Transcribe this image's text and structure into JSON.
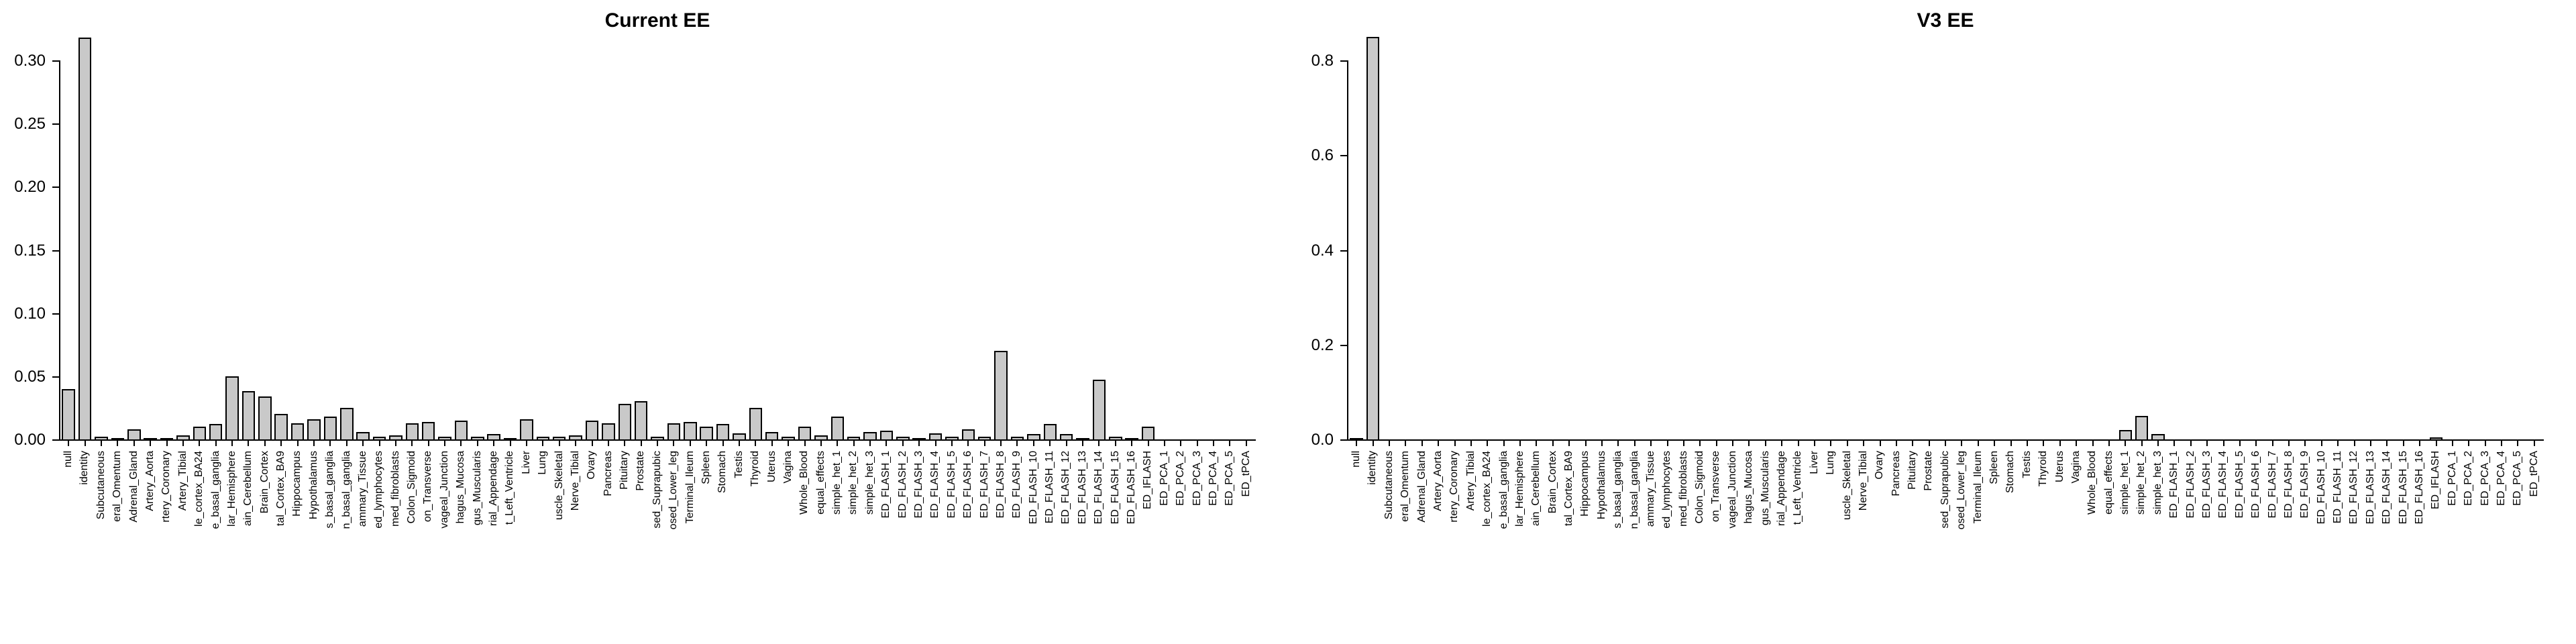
{
  "page": {
    "background": "#ffffff",
    "text_color": "#000000"
  },
  "chart_data": [
    {
      "type": "bar",
      "title": "Current EE",
      "bar_color": "#c9c9c9",
      "bar_border": "#000000",
      "grid": false,
      "legend": "none",
      "xlabel": "",
      "ylabel": "",
      "ylim": [
        0,
        0.32
      ],
      "y_ticks": [
        {
          "v": 0.0,
          "label": "0.00"
        },
        {
          "v": 0.05,
          "label": "0.05"
        },
        {
          "v": 0.1,
          "label": "0.10"
        },
        {
          "v": 0.15,
          "label": "0.15"
        },
        {
          "v": 0.2,
          "label": "0.20"
        },
        {
          "v": 0.25,
          "label": "0.25"
        },
        {
          "v": 0.3,
          "label": "0.30"
        }
      ],
      "categories": [
        "null",
        "identity",
        "Subcutaneous",
        "eral_Omentum",
        "Adrenal_Gland",
        "Artery_Aorta",
        "rtery_Coronary",
        "Artery_Tibial",
        "le_cortex_BA24",
        "e_basal_ganglia",
        "lar_Hemisphere",
        "ain_Cerebellum",
        "Brain_Cortex",
        "tal_Cortex_BA9",
        "Hippocampus",
        "Hypothalamus",
        "s_basal_ganglia",
        "n_basal_ganglia",
        "ammary_Tissue",
        "ed_lymphocytes",
        "med_fibroblasts",
        "Colon_Sigmoid",
        "on_Transverse",
        "vageal_Junction",
        "hagus_Mucosa",
        "gus_Muscularis",
        "rial_Appendage",
        "t_Left_Ventricle",
        "Liver",
        "Lung",
        "uscle_Skeletal",
        "Nerve_Tibial",
        "Ovary",
        "Pancreas",
        "Pituitary",
        "Prostate",
        "sed_Suprapubic",
        "osed_Lower_leg",
        "Terminal_Ileum",
        "Spleen",
        "Stomach",
        "Testis",
        "Thyroid",
        "Uterus",
        "Vagina",
        "Whole_Blood",
        "equal_effects",
        "simple_het_1",
        "simple_het_2",
        "simple_het_3",
        "ED_FLASH_1",
        "ED_FLASH_2",
        "ED_FLASH_3",
        "ED_FLASH_4",
        "ED_FLASH_5",
        "ED_FLASH_6",
        "ED_FLASH_7",
        "ED_FLASH_8",
        "ED_FLASH_9",
        "ED_FLASH_10",
        "ED_FLASH_11",
        "ED_FLASH_12",
        "ED_FLASH_13",
        "ED_FLASH_14",
        "ED_FLASH_15",
        "ED_FLASH_16",
        "ED_IFLASH",
        "ED_PCA_1",
        "ED_PCA_2",
        "ED_PCA_3",
        "ED_PCA_4",
        "ED_PCA_5",
        "ED_tPCA"
      ],
      "values": [
        0.04,
        0.318,
        0.002,
        0.001,
        0.008,
        0.001,
        0.001,
        0.003,
        0.01,
        0.012,
        0.05,
        0.038,
        0.034,
        0.02,
        0.013,
        0.016,
        0.018,
        0.025,
        0.006,
        0.002,
        0.003,
        0.013,
        0.014,
        0.002,
        0.015,
        0.002,
        0.004,
        0.001,
        0.016,
        0.002,
        0.002,
        0.003,
        0.015,
        0.013,
        0.028,
        0.03,
        0.002,
        0.013,
        0.014,
        0.01,
        0.012,
        0.005,
        0.025,
        0.006,
        0.002,
        0.01,
        0.003,
        0.018,
        0.002,
        0.006,
        0.007,
        0.002,
        0.001,
        0.005,
        0.002,
        0.008,
        0.002,
        0.07,
        0.002,
        0.004,
        0.012,
        0.004,
        0.001,
        0.047,
        0.002,
        0.001,
        0.01,
        0,
        0,
        0,
        0,
        0,
        0
      ]
    },
    {
      "type": "bar",
      "title": "V3 EE",
      "bar_color": "#c9c9c9",
      "bar_border": "#000000",
      "grid": false,
      "legend": "none",
      "xlabel": "",
      "ylabel": "",
      "ylim": [
        0,
        0.86
      ],
      "y_ticks": [
        {
          "v": 0.0,
          "label": "0.0"
        },
        {
          "v": 0.2,
          "label": "0.2"
        },
        {
          "v": 0.4,
          "label": "0.4"
        },
        {
          "v": 0.6,
          "label": "0.6"
        },
        {
          "v": 0.8,
          "label": "0.8"
        }
      ],
      "categories": [
        "null",
        "identity",
        "Subcutaneous",
        "eral_Omentum",
        "Adrenal_Gland",
        "Artery_Aorta",
        "rtery_Coronary",
        "Artery_Tibial",
        "le_cortex_BA24",
        "e_basal_ganglia",
        "lar_Hemisphere",
        "ain_Cerebellum",
        "Brain_Cortex",
        "tal_Cortex_BA9",
        "Hippocampus",
        "Hypothalamus",
        "s_basal_ganglia",
        "n_basal_ganglia",
        "ammary_Tissue",
        "ed_lymphocytes",
        "med_fibroblasts",
        "Colon_Sigmoid",
        "on_Transverse",
        "vageal_Junction",
        "hagus_Mucosa",
        "gus_Muscularis",
        "rial_Appendage",
        "t_Left_Ventricle",
        "Liver",
        "Lung",
        "uscle_Skeletal",
        "Nerve_Tibial",
        "Ovary",
        "Pancreas",
        "Pituitary",
        "Prostate",
        "sed_Suprapubic",
        "osed_Lower_leg",
        "Terminal_Ileum",
        "Spleen",
        "Stomach",
        "Testis",
        "Thyroid",
        "Uterus",
        "Vagina",
        "Whole_Blood",
        "equal_effects",
        "simple_het_1",
        "simple_het_2",
        "simple_het_3",
        "ED_FLASH_1",
        "ED_FLASH_2",
        "ED_FLASH_3",
        "ED_FLASH_4",
        "ED_FLASH_5",
        "ED_FLASH_6",
        "ED_FLASH_7",
        "ED_FLASH_8",
        "ED_FLASH_9",
        "ED_FLASH_10",
        "ED_FLASH_11",
        "ED_FLASH_12",
        "ED_FLASH_13",
        "ED_FLASH_14",
        "ED_FLASH_15",
        "ED_FLASH_16",
        "ED_IFLASH",
        "ED_PCA_1",
        "ED_PCA_2",
        "ED_PCA_3",
        "ED_PCA_4",
        "ED_PCA_5",
        "ED_tPCA"
      ],
      "values": [
        0.002,
        0.85,
        0,
        0,
        0,
        0,
        0,
        0,
        0,
        0,
        0,
        0,
        0,
        0,
        0,
        0,
        0,
        0,
        0,
        0,
        0,
        0,
        0,
        0,
        0,
        0,
        0,
        0,
        0,
        0,
        0,
        0,
        0,
        0,
        0,
        0,
        0,
        0,
        0,
        0,
        0,
        0,
        0,
        0,
        0,
        0,
        0,
        0.02,
        0.05,
        0.012,
        0,
        0,
        0,
        0,
        0,
        0,
        0,
        0,
        0,
        0,
        0,
        0,
        0,
        0,
        0,
        0,
        0.004,
        0,
        0,
        0,
        0,
        0,
        0
      ]
    }
  ]
}
